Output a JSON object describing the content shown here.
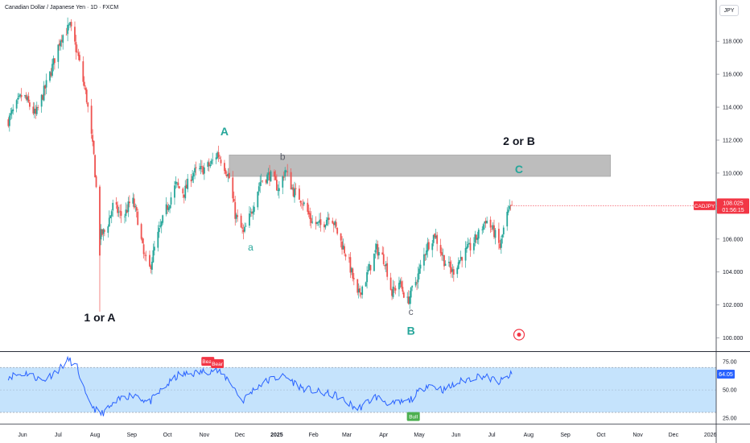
{
  "header": {
    "title": "Canadian Dollar / Japanese Yen · 1D · FXCM",
    "unit": "JPY"
  },
  "colors": {
    "up": "#26a69a",
    "down": "#ef5350",
    "rsi": "#2962ff",
    "rsi_band": "#bbdefb",
    "zone": "#b2b2b2",
    "wave": "#26a69a",
    "label": "#131722",
    "last": "#f23645"
  },
  "chart_data": [
    {
      "type": "candlestick",
      "title": "Canadian Dollar / Japanese Yen · 1D · FXCM",
      "ylabel": "JPY",
      "ylim": [
        99.2,
        120.5
      ],
      "yticks": [
        100,
        102,
        104,
        106,
        108,
        110,
        112,
        114,
        116,
        118
      ],
      "ytick_labels": [
        "100.000",
        "102.000",
        "104.000",
        "106.000",
        "108.000",
        "110.000",
        "112.000",
        "114.000",
        "116.000",
        "118.000"
      ],
      "x_labels": [
        "Jun",
        "Jul",
        "Aug",
        "Sep",
        "Oct",
        "Nov",
        "Dec",
        "2025",
        "Feb",
        "Mar",
        "Apr",
        "May",
        "Jun",
        "Jul",
        "Aug",
        "Sep",
        "Oct",
        "Nov",
        "Dec",
        "2026"
      ],
      "path": [
        {
          "date": "2024-05-20",
          "value": 113.2
        },
        {
          "date": "2024-06-01",
          "value": 114.8
        },
        {
          "date": "2024-06-12",
          "value": 113.5
        },
        {
          "date": "2024-06-25",
          "value": 116.2
        },
        {
          "date": "2024-07-03",
          "value": 118.2
        },
        {
          "date": "2024-07-11",
          "value": 118.9
        },
        {
          "date": "2024-07-18",
          "value": 117.0
        },
        {
          "date": "2024-07-25",
          "value": 114.5
        },
        {
          "date": "2024-07-31",
          "value": 111.0
        },
        {
          "date": "2024-08-05",
          "value": 106.2
        },
        {
          "date": "2024-08-10",
          "value": 106.5
        },
        {
          "date": "2024-08-16",
          "value": 108.0
        },
        {
          "date": "2024-08-25",
          "value": 107.3
        },
        {
          "date": "2024-09-01",
          "value": 108.5
        },
        {
          "date": "2024-09-06",
          "value": 107.2
        },
        {
          "date": "2024-09-11",
          "value": 105.0
        },
        {
          "date": "2024-09-16",
          "value": 104.2
        },
        {
          "date": "2024-09-22",
          "value": 106.0
        },
        {
          "date": "2024-09-30",
          "value": 107.8
        },
        {
          "date": "2024-10-08",
          "value": 109.3
        },
        {
          "date": "2024-10-15",
          "value": 108.8
        },
        {
          "date": "2024-10-22",
          "value": 110.0
        },
        {
          "date": "2024-10-30",
          "value": 110.2
        },
        {
          "date": "2024-11-06",
          "value": 110.5
        },
        {
          "date": "2024-11-12",
          "value": 111.2
        },
        {
          "date": "2024-11-17",
          "value": 110.6
        },
        {
          "date": "2024-11-22",
          "value": 109.7
        },
        {
          "date": "2024-11-27",
          "value": 107.5
        },
        {
          "date": "2024-12-04",
          "value": 106.3
        },
        {
          "date": "2024-12-10",
          "value": 107.5
        },
        {
          "date": "2024-12-18",
          "value": 109.5
        },
        {
          "date": "2024-12-26",
          "value": 109.9
        },
        {
          "date": "2025-01-03",
          "value": 109.0
        },
        {
          "date": "2025-01-08",
          "value": 110.2
        },
        {
          "date": "2025-01-15",
          "value": 108.9
        },
        {
          "date": "2025-01-22",
          "value": 108.4
        },
        {
          "date": "2025-01-31",
          "value": 107.0
        },
        {
          "date": "2025-02-08",
          "value": 106.8
        },
        {
          "date": "2025-02-15",
          "value": 107.6
        },
        {
          "date": "2025-02-23",
          "value": 106.0
        },
        {
          "date": "2025-03-02",
          "value": 104.8
        },
        {
          "date": "2025-03-10",
          "value": 102.5
        },
        {
          "date": "2025-03-17",
          "value": 103.6
        },
        {
          "date": "2025-03-26",
          "value": 105.4
        },
        {
          "date": "2025-04-02",
          "value": 104.7
        },
        {
          "date": "2025-04-08",
          "value": 102.7
        },
        {
          "date": "2025-04-14",
          "value": 103.4
        },
        {
          "date": "2025-04-21",
          "value": 102.2
        },
        {
          "date": "2025-04-30",
          "value": 103.8
        },
        {
          "date": "2025-05-07",
          "value": 105.5
        },
        {
          "date": "2025-05-14",
          "value": 106.3
        },
        {
          "date": "2025-05-22",
          "value": 104.7
        },
        {
          "date": "2025-05-29",
          "value": 104.0
        },
        {
          "date": "2025-06-06",
          "value": 105.0
        },
        {
          "date": "2025-06-13",
          "value": 105.5
        },
        {
          "date": "2025-06-20",
          "value": 106.3
        },
        {
          "date": "2025-06-26",
          "value": 107.2
        },
        {
          "date": "2025-07-03",
          "value": 106.4
        },
        {
          "date": "2025-07-08",
          "value": 105.5
        },
        {
          "date": "2025-07-13",
          "value": 107.3
        },
        {
          "date": "2025-07-18",
          "value": 108.0
        }
      ],
      "last_value": 108.025,
      "last_label": "108.025",
      "symbol_label": "CADJPY",
      "countdown": "01:56:15",
      "zone": {
        "from": "2024-11-22",
        "to": "2025-10-09",
        "low": 109.8,
        "high": 111.1
      },
      "annotations": [
        {
          "text": "A",
          "date": "2024-11-18",
          "value": 112.3,
          "style": "wave"
        },
        {
          "text": "a",
          "date": "2024-12-10",
          "value": 105.3,
          "style": "wave"
        },
        {
          "text": "b",
          "date": "2025-01-06",
          "value": 110.8,
          "style": "wave-gray"
        },
        {
          "text": "c",
          "date": "2025-04-24",
          "value": 101.4,
          "style": "wave-gray"
        },
        {
          "text": "B",
          "date": "2025-04-24",
          "value": 100.2,
          "style": "wave"
        },
        {
          "text": "C",
          "date": "2025-07-24",
          "value": 110.0,
          "style": "wave"
        },
        {
          "text": "1 or A",
          "date": "2024-08-05",
          "value": 101.0,
          "style": "bold"
        },
        {
          "text": "2 or B",
          "date": "2025-07-24",
          "value": 111.7,
          "style": "bold"
        }
      ],
      "event_marker": {
        "date": "2025-07-24",
        "value": 100.2
      }
    },
    {
      "type": "line",
      "title": "",
      "ylim": [
        20,
        83
      ],
      "yticks": [
        25,
        50,
        75
      ],
      "ytick_labels": [
        "25.00",
        "50.00",
        "75.00"
      ],
      "band": [
        30,
        70
      ],
      "midline": 50,
      "path": [
        {
          "date": "2024-05-20",
          "value": 62
        },
        {
          "date": "2024-06-05",
          "value": 65
        },
        {
          "date": "2024-06-18",
          "value": 58
        },
        {
          "date": "2024-07-01",
          "value": 68
        },
        {
          "date": "2024-07-10",
          "value": 77
        },
        {
          "date": "2024-07-17",
          "value": 70
        },
        {
          "date": "2024-07-25",
          "value": 42
        },
        {
          "date": "2024-08-05",
          "value": 28
        },
        {
          "date": "2024-08-12",
          "value": 33
        },
        {
          "date": "2024-08-25",
          "value": 44
        },
        {
          "date": "2024-09-05",
          "value": 46
        },
        {
          "date": "2024-09-15",
          "value": 38
        },
        {
          "date": "2024-09-28",
          "value": 52
        },
        {
          "date": "2024-10-10",
          "value": 63
        },
        {
          "date": "2024-10-25",
          "value": 65
        },
        {
          "date": "2024-11-10",
          "value": 68
        },
        {
          "date": "2024-11-22",
          "value": 59
        },
        {
          "date": "2024-12-03",
          "value": 40
        },
        {
          "date": "2024-12-15",
          "value": 53
        },
        {
          "date": "2024-12-28",
          "value": 60
        },
        {
          "date": "2025-01-08",
          "value": 62
        },
        {
          "date": "2025-01-22",
          "value": 52
        },
        {
          "date": "2025-02-05",
          "value": 48
        },
        {
          "date": "2025-02-20",
          "value": 45
        },
        {
          "date": "2025-03-10",
          "value": 33
        },
        {
          "date": "2025-03-25",
          "value": 44
        },
        {
          "date": "2025-04-08",
          "value": 37
        },
        {
          "date": "2025-04-22",
          "value": 40
        },
        {
          "date": "2025-05-08",
          "value": 55
        },
        {
          "date": "2025-05-22",
          "value": 50
        },
        {
          "date": "2025-06-06",
          "value": 58
        },
        {
          "date": "2025-06-22",
          "value": 63
        },
        {
          "date": "2025-07-08",
          "value": 57
        },
        {
          "date": "2025-07-18",
          "value": 64.05
        }
      ],
      "last_value": 64.05,
      "last_label": "64.05",
      "signals": [
        {
          "text": "Bear",
          "date": "2024-11-04",
          "value": 75,
          "kind": "bear"
        },
        {
          "text": "Bear",
          "date": "2024-11-12",
          "value": 73,
          "kind": "bear"
        },
        {
          "text": "Bull",
          "date": "2025-04-26",
          "value": 26,
          "kind": "bull"
        }
      ]
    }
  ]
}
